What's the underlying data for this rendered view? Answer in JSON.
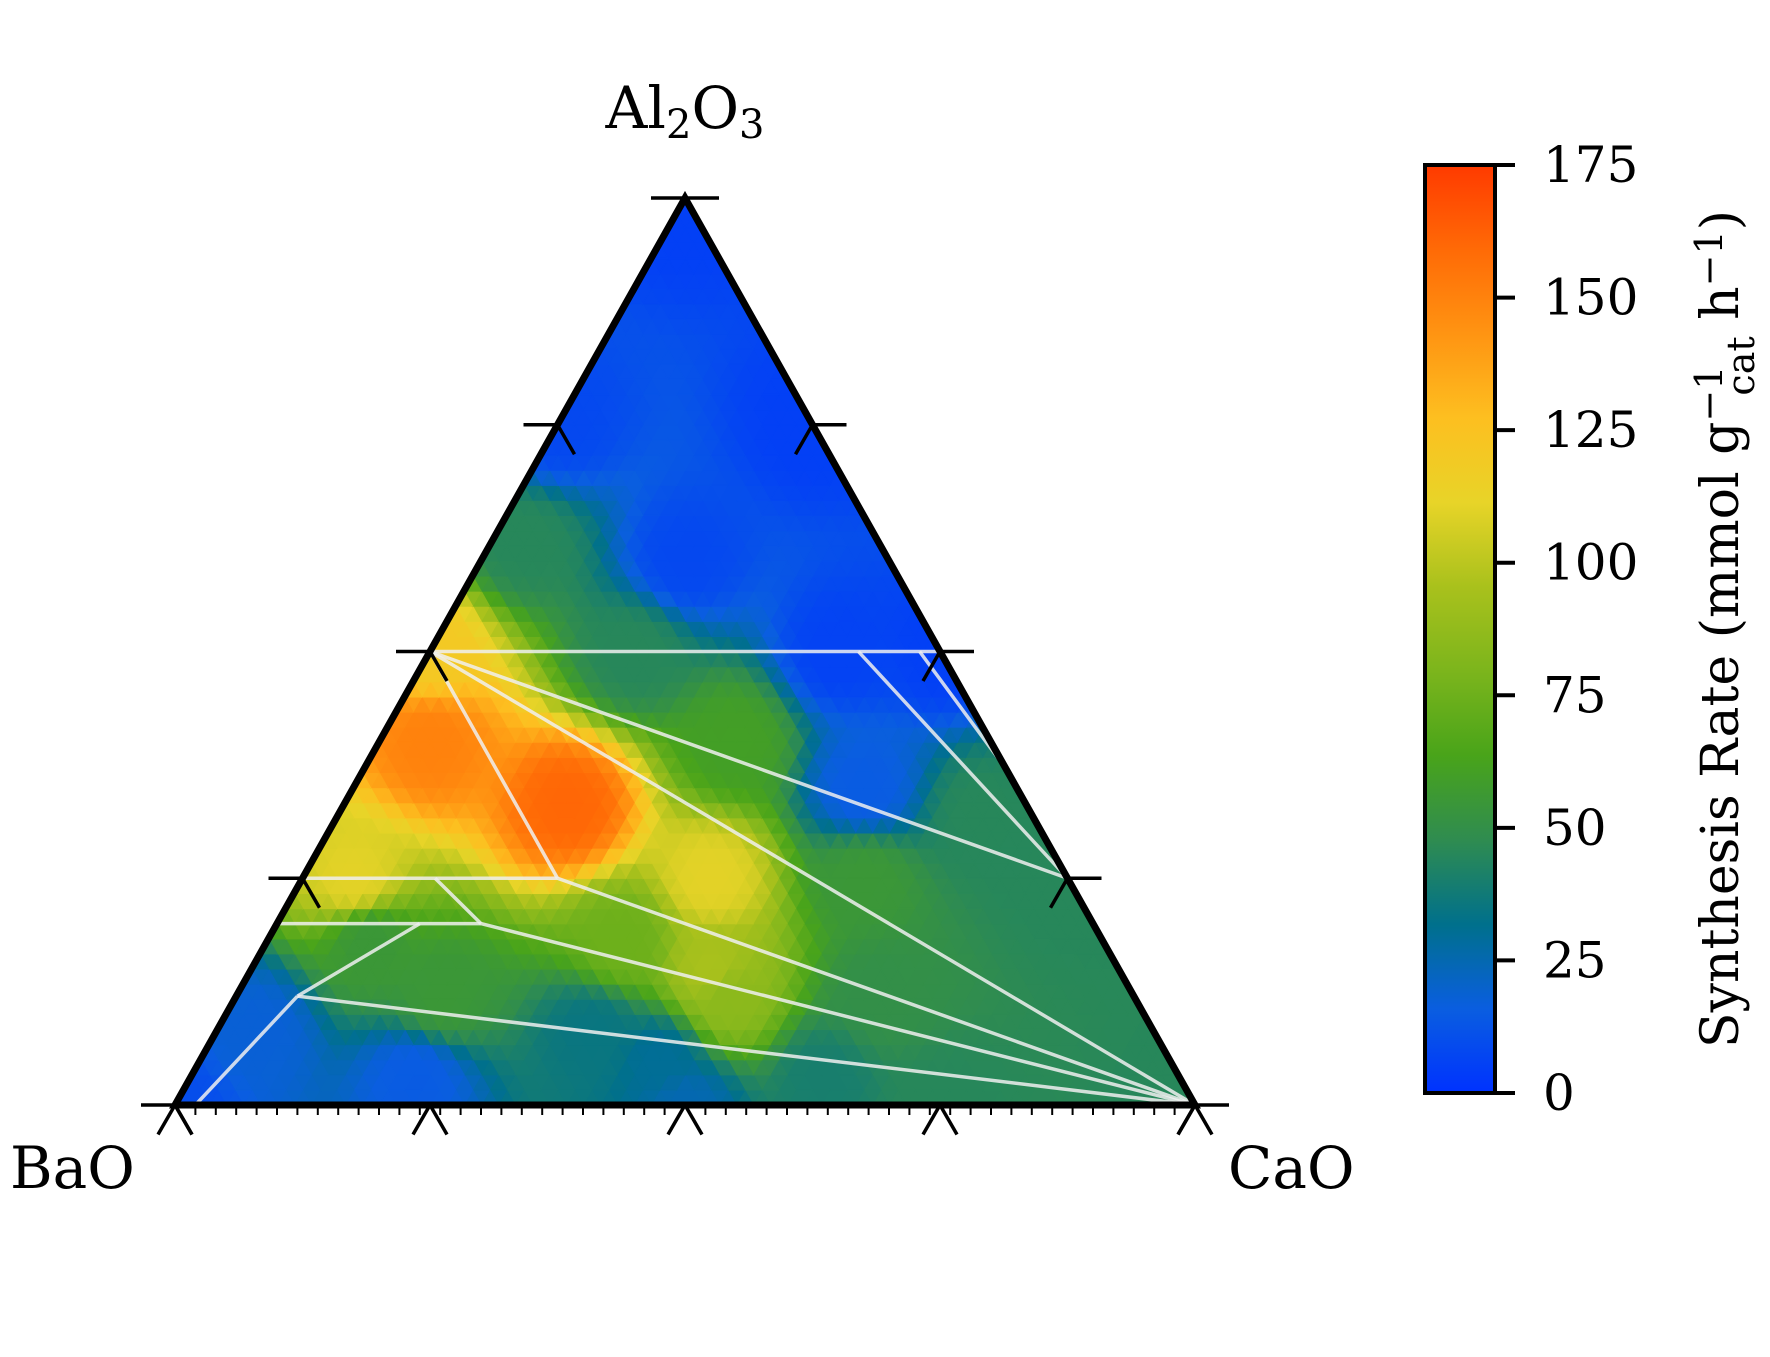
{
  "chart_data": {
    "type": "heatmap",
    "subtype": "ternary",
    "vertices": {
      "top": "Al2O3",
      "left": "BaO",
      "right": "CaO"
    },
    "vertex_label_parts": {
      "top": [
        "Al",
        "2",
        "O",
        "3"
      ]
    },
    "composition_ticks": [
      0,
      0.25,
      0.5,
      0.75,
      1.0
    ],
    "colorbar": {
      "label_parts": [
        "Synthesis Rate (mmol g",
        "cat",
        "−1",
        " h",
        "−1",
        ")"
      ],
      "range": [
        0,
        175
      ],
      "ticks": [
        0,
        25,
        50,
        75,
        100,
        125,
        150,
        175
      ],
      "tick_labels": [
        "0",
        "25",
        "50",
        "75",
        "100",
        "125",
        "150",
        "175"
      ],
      "colors": [
        "#0032ff",
        "#0a5ee0",
        "#00708c",
        "#2f8c50",
        "#49a41a",
        "#7cb51c",
        "#a9c11c",
        "#e8d428",
        "#fdbf20",
        "#ff9412",
        "#ff6a06",
        "#ff3a00"
      ]
    },
    "surface_samples": [
      {
        "Al2O3": 1.0,
        "BaO": 0.0,
        "CaO": 0.0,
        "rate": 5
      },
      {
        "Al2O3": 0.75,
        "BaO": 0.25,
        "CaO": 0.0,
        "rate": 8
      },
      {
        "Al2O3": 0.75,
        "BaO": 0.0,
        "CaO": 0.25,
        "rate": 5
      },
      {
        "Al2O3": 0.62,
        "BaO": 0.35,
        "CaO": 0.03,
        "rate": 45
      },
      {
        "Al2O3": 0.6,
        "BaO": 0.2,
        "CaO": 0.2,
        "rate": 8
      },
      {
        "Al2O3": 0.5,
        "BaO": 0.5,
        "CaO": 0.0,
        "rate": 120
      },
      {
        "Al2O3": 0.5,
        "BaO": 0.3,
        "CaO": 0.2,
        "rate": 45
      },
      {
        "Al2O3": 0.5,
        "BaO": 0.1,
        "CaO": 0.4,
        "rate": 6
      },
      {
        "Al2O3": 0.5,
        "BaO": 0.0,
        "CaO": 0.5,
        "rate": 5
      },
      {
        "Al2O3": 0.4,
        "BaO": 0.55,
        "CaO": 0.05,
        "rate": 150
      },
      {
        "Al2O3": 0.33,
        "BaO": 0.45,
        "CaO": 0.22,
        "rate": 160
      },
      {
        "Al2O3": 0.4,
        "BaO": 0.25,
        "CaO": 0.35,
        "rate": 60
      },
      {
        "Al2O3": 0.35,
        "BaO": 0.15,
        "CaO": 0.5,
        "rate": 15
      },
      {
        "Al2O3": 0.32,
        "BaO": 0.05,
        "CaO": 0.63,
        "rate": 45
      },
      {
        "Al2O3": 0.25,
        "BaO": 0.7,
        "CaO": 0.05,
        "rate": 110
      },
      {
        "Al2O3": 0.25,
        "BaO": 0.35,
        "CaO": 0.4,
        "rate": 110
      },
      {
        "Al2O3": 0.25,
        "BaO": 0.2,
        "CaO": 0.55,
        "rate": 55
      },
      {
        "Al2O3": 0.25,
        "BaO": 0.0,
        "CaO": 0.75,
        "rate": 45
      },
      {
        "Al2O3": 0.18,
        "BaO": 0.72,
        "CaO": 0.1,
        "rate": 55
      },
      {
        "Al2O3": 0.18,
        "BaO": 0.47,
        "CaO": 0.35,
        "rate": 75
      },
      {
        "Al2O3": 0.15,
        "BaO": 0.4,
        "CaO": 0.45,
        "rate": 95
      },
      {
        "Al2O3": 0.12,
        "BaO": 0.68,
        "CaO": 0.2,
        "rate": 55
      },
      {
        "Al2O3": 0.12,
        "BaO": 0.4,
        "CaO": 0.48,
        "rate": 85
      },
      {
        "Al2O3": 0.12,
        "BaO": 0.25,
        "CaO": 0.63,
        "rate": 50
      },
      {
        "Al2O3": 0.08,
        "BaO": 0.88,
        "CaO": 0.04,
        "rate": 18
      },
      {
        "Al2O3": 0.08,
        "BaO": 0.55,
        "CaO": 0.37,
        "rate": 35
      },
      {
        "Al2O3": 0.05,
        "BaO": 0.5,
        "CaO": 0.45,
        "rate": 30
      },
      {
        "Al2O3": 0.03,
        "BaO": 0.75,
        "CaO": 0.22,
        "rate": 15
      },
      {
        "Al2O3": 0.03,
        "BaO": 0.35,
        "CaO": 0.62,
        "rate": 40
      },
      {
        "Al2O3": 0.0,
        "BaO": 1.0,
        "CaO": 0.0,
        "rate": 10
      },
      {
        "Al2O3": 0.0,
        "BaO": 0.5,
        "CaO": 0.5,
        "rate": 25
      },
      {
        "Al2O3": 0.0,
        "BaO": 0.25,
        "CaO": 0.75,
        "rate": 45
      },
      {
        "Al2O3": 0.0,
        "BaO": 0.0,
        "CaO": 1.0,
        "rate": 45
      }
    ],
    "tie_lines": [
      [
        {
          "Al2O3": 0.5,
          "BaO": 0.5,
          "CaO": 0.0
        },
        {
          "Al2O3": 0.5,
          "BaO": 0.0,
          "CaO": 0.5
        }
      ],
      [
        {
          "Al2O3": 0.5,
          "BaO": 0.5,
          "CaO": 0.0
        },
        {
          "Al2O3": 0.25,
          "BaO": 0.5,
          "CaO": 0.25
        }
      ],
      [
        {
          "Al2O3": 0.5,
          "BaO": 0.5,
          "CaO": 0.0
        },
        {
          "Al2O3": 0.25,
          "BaO": 0.0,
          "CaO": 0.75
        }
      ],
      [
        {
          "Al2O3": 0.5,
          "BaO": 0.5,
          "CaO": 0.0
        },
        {
          "Al2O3": 0.0,
          "BaO": 0.0,
          "CaO": 1.0
        }
      ],
      [
        {
          "Al2O3": 0.5,
          "BaO": 0.08,
          "CaO": 0.42
        },
        {
          "Al2O3": 0.25,
          "BaO": 0.0,
          "CaO": 0.75
        }
      ],
      [
        {
          "Al2O3": 0.5,
          "BaO": 0.02,
          "CaO": 0.48
        },
        {
          "Al2O3": 0.37,
          "BaO": 0.0,
          "CaO": 0.63
        }
      ],
      [
        {
          "Al2O3": 0.25,
          "BaO": 0.75,
          "CaO": 0.0
        },
        {
          "Al2O3": 0.25,
          "BaO": 0.5,
          "CaO": 0.25
        }
      ],
      [
        {
          "Al2O3": 0.25,
          "BaO": 0.5,
          "CaO": 0.25
        },
        {
          "Al2O3": 0.0,
          "BaO": 0.0,
          "CaO": 1.0
        }
      ],
      [
        {
          "Al2O3": 0.25,
          "BaO": 0.62,
          "CaO": 0.13
        },
        {
          "Al2O3": 0.2,
          "BaO": 0.6,
          "CaO": 0.2
        }
      ],
      [
        {
          "Al2O3": 0.2,
          "BaO": 0.8,
          "CaO": 0.0
        },
        {
          "Al2O3": 0.2,
          "BaO": 0.6,
          "CaO": 0.2
        }
      ],
      [
        {
          "Al2O3": 0.2,
          "BaO": 0.6,
          "CaO": 0.2
        },
        {
          "Al2O3": 0.0,
          "BaO": 0.0,
          "CaO": 1.0
        }
      ],
      [
        {
          "Al2O3": 0.2,
          "BaO": 0.66,
          "CaO": 0.14
        },
        {
          "Al2O3": 0.12,
          "BaO": 0.82,
          "CaO": 0.06
        }
      ],
      [
        {
          "Al2O3": 0.12,
          "BaO": 0.82,
          "CaO": 0.06
        },
        {
          "Al2O3": 0.0,
          "BaO": 0.0,
          "CaO": 1.0
        }
      ],
      [
        {
          "Al2O3": 0.12,
          "BaO": 0.82,
          "CaO": 0.06
        },
        {
          "Al2O3": 0.0,
          "BaO": 0.98,
          "CaO": 0.02
        }
      ]
    ]
  }
}
